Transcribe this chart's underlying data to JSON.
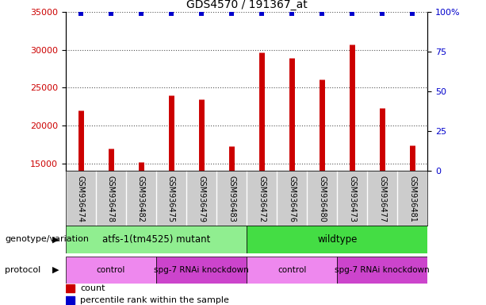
{
  "title": "GDS4570 / 191367_at",
  "samples": [
    "GSM936474",
    "GSM936478",
    "GSM936482",
    "GSM936475",
    "GSM936479",
    "GSM936483",
    "GSM936472",
    "GSM936476",
    "GSM936480",
    "GSM936473",
    "GSM936477",
    "GSM936481"
  ],
  "counts": [
    22000,
    17000,
    15200,
    24000,
    23500,
    17300,
    29700,
    28900,
    26100,
    30700,
    22300,
    17400
  ],
  "bar_color": "#cc0000",
  "percentile_color": "#0000cc",
  "ylim_left": [
    14000,
    35000
  ],
  "ylim_right": [
    0,
    100
  ],
  "yticks_left": [
    15000,
    20000,
    25000,
    30000,
    35000
  ],
  "yticks_right": [
    0,
    25,
    50,
    75,
    100
  ],
  "genotype_groups": [
    {
      "label": "atfs-1(tm4525) mutant",
      "start": 0,
      "end": 6,
      "color": "#90ee90"
    },
    {
      "label": "wildtype",
      "start": 6,
      "end": 12,
      "color": "#44dd44"
    }
  ],
  "protocol_groups": [
    {
      "label": "control",
      "start": 0,
      "end": 3,
      "color": "#ee88ee"
    },
    {
      "label": "spg-7 RNAi knockdown",
      "start": 3,
      "end": 6,
      "color": "#cc44cc"
    },
    {
      "label": "control",
      "start": 6,
      "end": 9,
      "color": "#ee88ee"
    },
    {
      "label": "spg-7 RNAi knockdown",
      "start": 9,
      "end": 12,
      "color": "#cc44cc"
    }
  ],
  "genotype_label": "genotype/variation",
  "protocol_label": "protocol",
  "legend_count_label": "count",
  "legend_percentile_label": "percentile rank within the sample",
  "tick_label_color_left": "#cc0000",
  "tick_label_color_right": "#0000cc",
  "grid_color": "#555555",
  "xticklabel_bg": "#cccccc"
}
